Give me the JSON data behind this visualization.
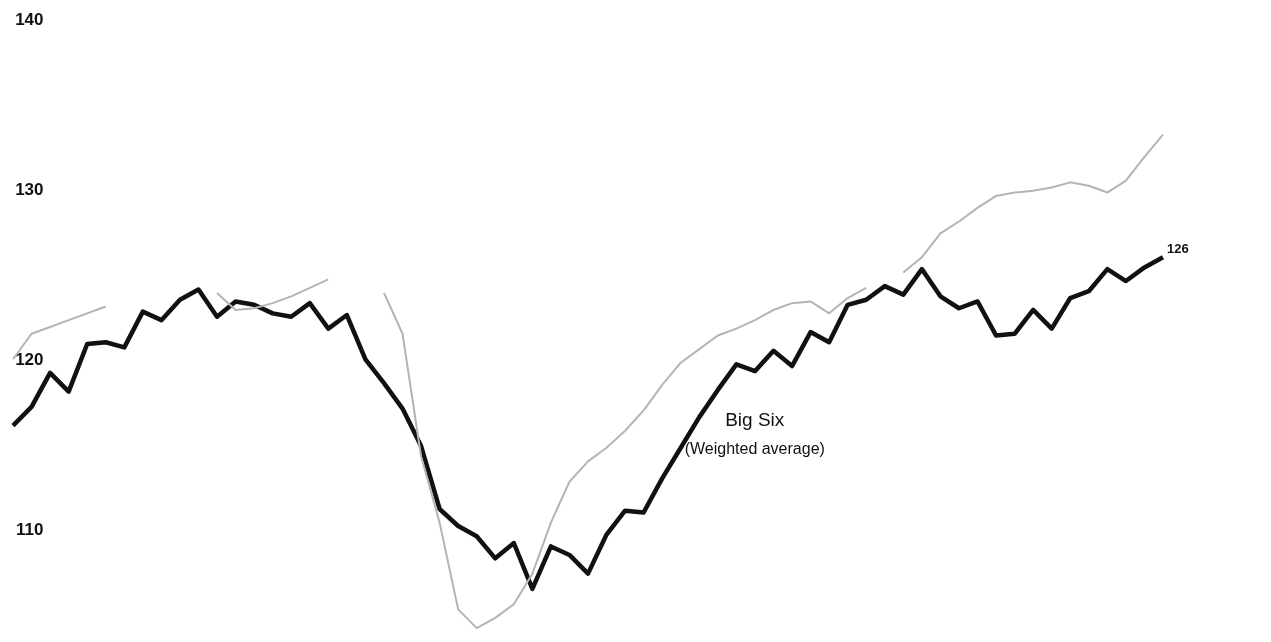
{
  "chart_data": {
    "type": "line",
    "categories": [
      null,
      null,
      null,
      null,
      null,
      null,
      null,
      null,
      null,
      null,
      null,
      null,
      null,
      null,
      null,
      null,
      null,
      null,
      null,
      null,
      null,
      null,
      null,
      null,
      null,
      null,
      null,
      null,
      null,
      null,
      null,
      null,
      null,
      null,
      null,
      null,
      null,
      null,
      null,
      null,
      null,
      null,
      null,
      null,
      null,
      null,
      null,
      null,
      null,
      null,
      null,
      null,
      null,
      null,
      null,
      null,
      null,
      null,
      null,
      null,
      null,
      null,
      null
    ],
    "ylim": [
      103.5,
      141
    ],
    "yticks": [
      110,
      120,
      130,
      140
    ],
    "tick_labels": "y",
    "grid": false,
    "marker": "none",
    "line_style": "solid",
    "annotations": [
      "(Weighted average)"
    ],
    "series": [
      {
        "name": "Big Six",
        "color": "#111111",
        "values": [
          116.1,
          117.2,
          119.2,
          118.1,
          120.9,
          121.0,
          120.7,
          122.8,
          122.3,
          123.5,
          124.1,
          122.5,
          123.4,
          123.2,
          122.7,
          122.5,
          123.3,
          121.8,
          122.6,
          120.0,
          118.6,
          117.1,
          114.9,
          111.2,
          110.2,
          109.6,
          108.3,
          109.2,
          106.5,
          109.0,
          108.5,
          107.4,
          109.7,
          111.1,
          111.0,
          113.0,
          114.8,
          116.6,
          118.2,
          119.7,
          119.3,
          120.5,
          119.6,
          121.6,
          121.0,
          123.2,
          123.5,
          124.3,
          123.8,
          125.3,
          123.7,
          123.0,
          123.4,
          121.4,
          121.5,
          122.9,
          121.8,
          123.6,
          124.0,
          125.3,
          124.6,
          125.4,
          126
        ],
        "value_labels": [
          null,
          null,
          null,
          null,
          null,
          null,
          null,
          null,
          null,
          null,
          null,
          null,
          null,
          null,
          null,
          null,
          null,
          null,
          null,
          null,
          null,
          null,
          null,
          null,
          null,
          null,
          null,
          null,
          null,
          null,
          null,
          null,
          null,
          null,
          null,
          null,
          null,
          null,
          null,
          null,
          null,
          null,
          null,
          null,
          null,
          null,
          null,
          null,
          null,
          null,
          null,
          null,
          null,
          null,
          null,
          null,
          null,
          null,
          null,
          null,
          null,
          null,
          "126"
        ]
      },
      {
        "color": "#b4b4b4",
        "values": [
          120.0,
          121.5,
          121.9,
          122.3,
          122.7,
          123.1,
          null,
          null,
          null,
          null,
          null,
          123.9,
          122.9,
          123.0,
          123.3,
          123.7,
          124.2,
          124.7,
          null,
          null,
          123.9,
          121.5,
          114.3,
          110.4,
          105.3,
          104.2,
          104.8,
          105.6,
          107.4,
          110.4,
          112.8,
          114.0,
          114.8,
          115.8,
          117.0,
          118.5,
          119.8,
          120.6,
          121.4,
          121.8,
          122.3,
          122.9,
          123.3,
          123.4,
          122.7,
          123.6,
          124.2,
          null,
          125.1,
          126.0,
          127.4,
          128.1,
          128.9,
          129.6,
          129.8,
          129.9,
          130.1,
          130.4,
          130.2,
          129.8,
          130.5,
          131.9,
          133.2
        ]
      }
    ]
  }
}
